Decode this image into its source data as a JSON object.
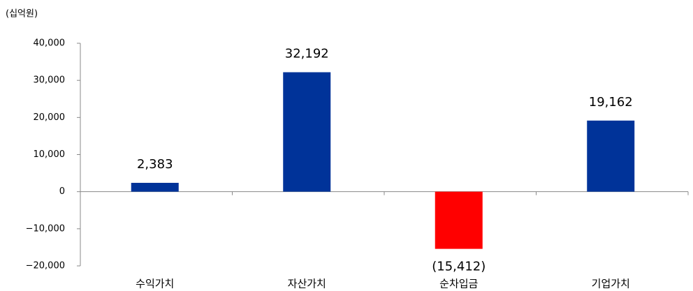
{
  "chart_data": {
    "type": "bar",
    "y_axis_label": "(십억원)",
    "categories": [
      "수익가치",
      "자산가치",
      "순차입금",
      "기업가치"
    ],
    "values": [
      2383,
      32192,
      -15412,
      19162
    ],
    "value_labels": [
      "2,383",
      "32,192",
      "(15,412)",
      "19,162"
    ],
    "colors": [
      "#003399",
      "#003399",
      "#ff0000",
      "#003399"
    ],
    "ylim": [
      -20000,
      40000
    ],
    "yticks": [
      {
        "value": -20000,
        "label": "−20,000"
      },
      {
        "value": -10000,
        "label": "−10,000"
      },
      0,
      {
        "value": 10000,
        "label": "10,000"
      },
      {
        "value": 20000,
        "label": "20,000"
      },
      {
        "value": 30000,
        "label": "30,000"
      },
      {
        "value": 40000,
        "label": "40,000"
      }
    ],
    "grid": false
  }
}
